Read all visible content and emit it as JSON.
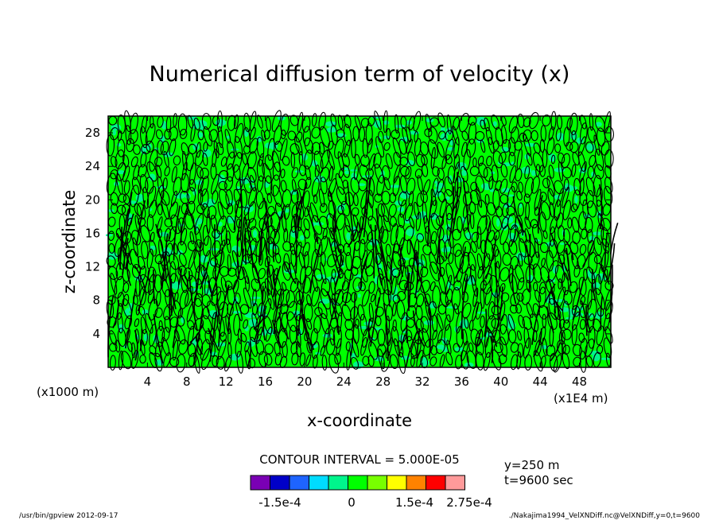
{
  "chart_data": {
    "type": "heatmap",
    "title": "Numerical diffusion term of velocity (x)",
    "xlabel": "x-coordinate",
    "ylabel": "z-coordinate",
    "x_unit_note": "(x1E4 m)",
    "y_unit_note": "(x1000 m)",
    "xlim": [
      0,
      51.2
    ],
    "ylim": [
      0,
      30
    ],
    "x_ticks": [
      4,
      8,
      12,
      16,
      20,
      24,
      28,
      32,
      36,
      40,
      44,
      48
    ],
    "y_ticks": [
      4,
      8,
      12,
      16,
      20,
      24,
      28
    ],
    "contour_interval_text": "CONTOUR INTERVAL = 5.000E-05",
    "colorbar": {
      "colors": [
        "#7a00b4",
        "#0000c8",
        "#1e64ff",
        "#00dcff",
        "#00f58c",
        "#00ff00",
        "#78ff00",
        "#ffff00",
        "#ff8200",
        "#ff0000",
        "#ff9a9a"
      ],
      "tick_labels": [
        "-1.5e-4",
        "0",
        "1.5e-4",
        "2.75e-4"
      ]
    },
    "field_colors": {
      "background": "#00ff00",
      "secondary": "#00f58c",
      "contour": "#000000"
    },
    "annotations": {
      "position_y": "y=250 m",
      "time": "t=9600 sec",
      "footer_left": "/usr/bin/gpview  2012-09-17",
      "footer_right": "./Nakajima1994_VelXNDiff.nc@VelXNDiff,y=0,t=9600"
    }
  }
}
